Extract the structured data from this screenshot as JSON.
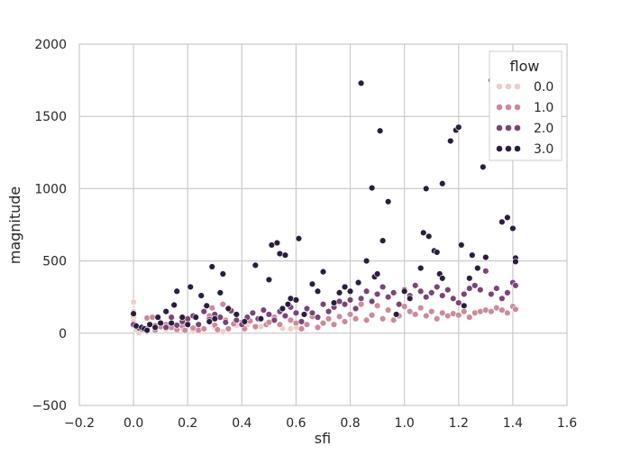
{
  "chart_data": {
    "type": "scatter",
    "title": "",
    "xlabel": "sfi",
    "ylabel": "magnitude",
    "xlim": [
      -0.2,
      1.6
    ],
    "ylim": [
      -500,
      2000
    ],
    "x_ticks": [
      -0.2,
      0.0,
      0.2,
      0.4,
      0.6,
      0.8,
      1.0,
      1.2,
      1.4,
      1.6
    ],
    "x_tick_labels": [
      "−0.2",
      "0.0",
      "0.2",
      "0.4",
      "0.6",
      "0.8",
      "1.0",
      "1.2",
      "1.4",
      "1.6"
    ],
    "y_ticks": [
      -500,
      0,
      500,
      1000,
      1500,
      2000
    ],
    "y_tick_labels": [
      "−500",
      "0",
      "500",
      "1000",
      "1500",
      "2000"
    ],
    "grid": true,
    "legend": {
      "title": "flow",
      "placement": "top-right"
    },
    "series": [
      {
        "name": "0.0",
        "color": "#ebcfca",
        "points": [
          [
            0.0,
            215
          ],
          [
            0.0,
            150
          ],
          [
            0.0,
            110
          ],
          [
            0.0,
            80
          ],
          [
            0.0,
            50
          ],
          [
            0.01,
            20
          ],
          [
            0.02,
            5
          ],
          [
            0.05,
            10
          ],
          [
            0.12,
            25
          ],
          [
            0.18,
            35
          ],
          [
            0.25,
            30
          ],
          [
            0.3,
            40
          ],
          [
            0.38,
            55
          ],
          [
            0.42,
            60
          ],
          [
            0.47,
            45
          ],
          [
            0.55,
            35
          ],
          [
            0.58,
            30
          ],
          [
            0.6,
            40
          ],
          [
            0.22,
            15
          ],
          [
            0.33,
            10
          ]
        ]
      },
      {
        "name": "1.0",
        "color": "#cc8a9b",
        "points": [
          [
            0.03,
            25
          ],
          [
            0.05,
            105
          ],
          [
            0.07,
            110
          ],
          [
            0.08,
            20
          ],
          [
            0.1,
            45
          ],
          [
            0.12,
            60
          ],
          [
            0.14,
            40
          ],
          [
            0.16,
            25
          ],
          [
            0.18,
            50
          ],
          [
            0.19,
            20
          ],
          [
            0.2,
            70
          ],
          [
            0.22,
            35
          ],
          [
            0.24,
            20
          ],
          [
            0.26,
            30
          ],
          [
            0.28,
            120
          ],
          [
            0.29,
            175
          ],
          [
            0.3,
            55
          ],
          [
            0.31,
            25
          ],
          [
            0.33,
            200
          ],
          [
            0.34,
            90
          ],
          [
            0.35,
            30
          ],
          [
            0.37,
            65
          ],
          [
            0.4,
            75
          ],
          [
            0.41,
            30
          ],
          [
            0.43,
            85
          ],
          [
            0.45,
            45
          ],
          [
            0.47,
            100
          ],
          [
            0.49,
            60
          ],
          [
            0.5,
            75
          ],
          [
            0.52,
            110
          ],
          [
            0.54,
            60
          ],
          [
            0.56,
            120
          ],
          [
            0.58,
            90
          ],
          [
            0.6,
            70
          ],
          [
            0.62,
            30
          ],
          [
            0.64,
            60
          ],
          [
            0.66,
            115
          ],
          [
            0.68,
            40
          ],
          [
            0.7,
            70
          ],
          [
            0.72,
            100
          ],
          [
            0.74,
            60
          ],
          [
            0.76,
            115
          ],
          [
            0.78,
            80
          ],
          [
            0.8,
            130
          ],
          [
            0.82,
            100
          ],
          [
            0.84,
            200
          ],
          [
            0.86,
            90
          ],
          [
            0.88,
            125
          ],
          [
            0.9,
            190
          ],
          [
            0.92,
            100
          ],
          [
            0.94,
            160
          ],
          [
            0.96,
            90
          ],
          [
            0.98,
            120
          ],
          [
            1.0,
            185
          ],
          [
            1.02,
            150
          ],
          [
            1.04,
            130
          ],
          [
            1.06,
            175
          ],
          [
            1.08,
            120
          ],
          [
            1.1,
            150
          ],
          [
            1.12,
            100
          ],
          [
            1.14,
            140
          ],
          [
            1.16,
            120
          ],
          [
            1.18,
            135
          ],
          [
            1.2,
            125
          ],
          [
            1.22,
            150
          ],
          [
            1.24,
            110
          ],
          [
            1.26,
            140
          ],
          [
            1.28,
            150
          ],
          [
            1.3,
            160
          ],
          [
            1.32,
            150
          ],
          [
            1.34,
            175
          ],
          [
            1.36,
            160
          ],
          [
            1.38,
            140
          ],
          [
            1.4,
            185
          ],
          [
            1.41,
            165
          ]
        ]
      },
      {
        "name": "2.0",
        "color": "#7a4575",
        "points": [
          [
            0.0,
            60
          ],
          [
            0.02,
            35
          ],
          [
            0.05,
            30
          ],
          [
            0.08,
            50
          ],
          [
            0.1,
            75
          ],
          [
            0.12,
            40
          ],
          [
            0.14,
            110
          ],
          [
            0.16,
            55
          ],
          [
            0.18,
            80
          ],
          [
            0.2,
            100
          ],
          [
            0.22,
            120
          ],
          [
            0.24,
            60
          ],
          [
            0.26,
            150
          ],
          [
            0.28,
            95
          ],
          [
            0.3,
            130
          ],
          [
            0.32,
            110
          ],
          [
            0.34,
            75
          ],
          [
            0.36,
            155
          ],
          [
            0.38,
            90
          ],
          [
            0.4,
            60
          ],
          [
            0.42,
            110
          ],
          [
            0.44,
            140
          ],
          [
            0.46,
            100
          ],
          [
            0.48,
            160
          ],
          [
            0.5,
            130
          ],
          [
            0.52,
            90
          ],
          [
            0.54,
            150
          ],
          [
            0.56,
            120
          ],
          [
            0.58,
            180
          ],
          [
            0.6,
            140
          ],
          [
            0.62,
            80
          ],
          [
            0.64,
            170
          ],
          [
            0.66,
            140
          ],
          [
            0.68,
            110
          ],
          [
            0.7,
            200
          ],
          [
            0.72,
            150
          ],
          [
            0.74,
            180
          ],
          [
            0.76,
            220
          ],
          [
            0.78,
            200
          ],
          [
            0.8,
            230
          ],
          [
            0.82,
            170
          ],
          [
            0.84,
            240
          ],
          [
            0.86,
            290
          ],
          [
            0.88,
            220
          ],
          [
            0.9,
            270
          ],
          [
            0.92,
            320
          ],
          [
            0.94,
            250
          ],
          [
            0.96,
            280
          ],
          [
            0.98,
            200
          ],
          [
            1.0,
            300
          ],
          [
            1.02,
            260
          ],
          [
            1.04,
            330
          ],
          [
            1.06,
            290
          ],
          [
            1.08,
            250
          ],
          [
            1.1,
            280
          ],
          [
            1.12,
            320
          ],
          [
            1.14,
            260
          ],
          [
            1.16,
            300
          ],
          [
            1.18,
            240
          ],
          [
            1.2,
            210
          ],
          [
            1.22,
            270
          ],
          [
            1.24,
            310
          ],
          [
            1.26,
            330
          ],
          [
            1.28,
            300
          ],
          [
            1.3,
            430
          ],
          [
            1.32,
            270
          ],
          [
            1.34,
            310
          ],
          [
            1.36,
            240
          ],
          [
            1.38,
            280
          ],
          [
            1.4,
            350
          ],
          [
            1.41,
            330
          ]
        ]
      },
      {
        "name": "3.0",
        "color": "#2a1d3d",
        "points": [
          [
            0.0,
            135
          ],
          [
            0.01,
            50
          ],
          [
            0.03,
            40
          ],
          [
            0.04,
            30
          ],
          [
            0.05,
            20
          ],
          [
            0.06,
            60
          ],
          [
            0.08,
            40
          ],
          [
            0.09,
            110
          ],
          [
            0.1,
            70
          ],
          [
            0.12,
            150
          ],
          [
            0.14,
            70
          ],
          [
            0.15,
            195
          ],
          [
            0.16,
            290
          ],
          [
            0.18,
            110
          ],
          [
            0.2,
            60
          ],
          [
            0.21,
            320
          ],
          [
            0.23,
            110
          ],
          [
            0.25,
            260
          ],
          [
            0.27,
            190
          ],
          [
            0.28,
            80
          ],
          [
            0.29,
            460
          ],
          [
            0.3,
            100
          ],
          [
            0.32,
            280
          ],
          [
            0.33,
            410
          ],
          [
            0.35,
            170
          ],
          [
            0.38,
            130
          ],
          [
            0.41,
            80
          ],
          [
            0.45,
            470
          ],
          [
            0.47,
            100
          ],
          [
            0.5,
            370
          ],
          [
            0.51,
            610
          ],
          [
            0.53,
            625
          ],
          [
            0.54,
            550
          ],
          [
            0.55,
            170
          ],
          [
            0.56,
            540
          ],
          [
            0.57,
            200
          ],
          [
            0.58,
            240
          ],
          [
            0.6,
            230
          ],
          [
            0.61,
            655
          ],
          [
            0.63,
            130
          ],
          [
            0.66,
            340
          ],
          [
            0.68,
            290
          ],
          [
            0.7,
            425
          ],
          [
            0.74,
            210
          ],
          [
            0.76,
            280
          ],
          [
            0.78,
            320
          ],
          [
            0.8,
            290
          ],
          [
            0.83,
            350
          ],
          [
            0.84,
            1730
          ],
          [
            0.86,
            500
          ],
          [
            0.88,
            1005
          ],
          [
            0.89,
            390
          ],
          [
            0.9,
            410
          ],
          [
            0.91,
            1400
          ],
          [
            0.92,
            640
          ],
          [
            0.94,
            910
          ],
          [
            0.97,
            130
          ],
          [
            1.0,
            290
          ],
          [
            1.02,
            240
          ],
          [
            1.06,
            450
          ],
          [
            1.07,
            695
          ],
          [
            1.08,
            1000
          ],
          [
            1.09,
            670
          ],
          [
            1.11,
            570
          ],
          [
            1.12,
            560
          ],
          [
            1.13,
            410
          ],
          [
            1.14,
            380
          ],
          [
            1.14,
            1035
          ],
          [
            1.17,
            1330
          ],
          [
            1.19,
            1405
          ],
          [
            1.2,
            1425
          ],
          [
            1.21,
            610
          ],
          [
            1.22,
            190
          ],
          [
            1.24,
            380
          ],
          [
            1.25,
            540
          ],
          [
            1.27,
            450
          ],
          [
            1.29,
            1150
          ],
          [
            1.3,
            525
          ],
          [
            1.32,
            1750
          ],
          [
            1.36,
            770
          ],
          [
            1.38,
            800
          ],
          [
            1.4,
            725
          ],
          [
            1.41,
            520
          ],
          [
            1.41,
            495
          ]
        ]
      }
    ]
  }
}
